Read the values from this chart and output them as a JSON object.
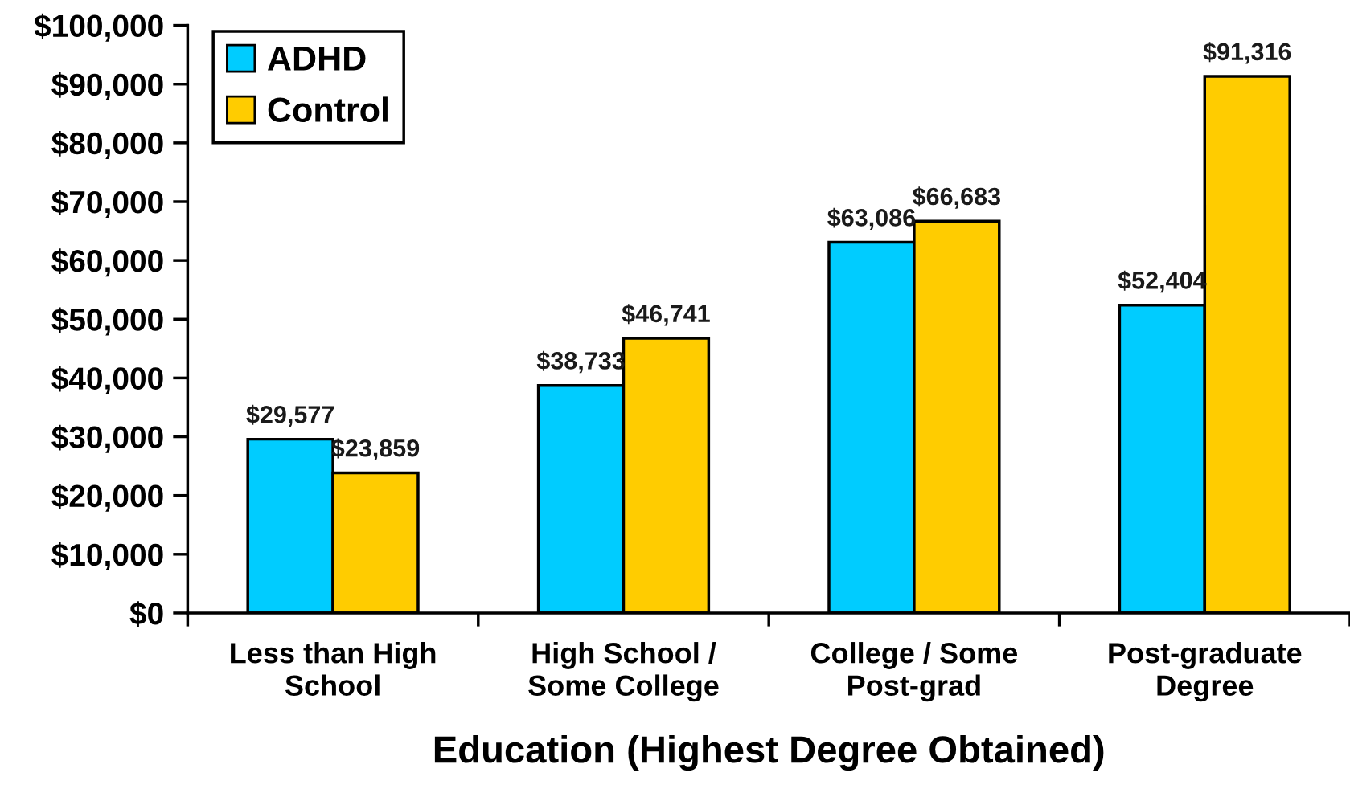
{
  "chart_data": {
    "type": "bar",
    "xlabel": "Education (Highest Degree Obtained)",
    "categories": [
      "Less than High\nSchool",
      "High School /\nSome College",
      "College / Some\nPost-grad",
      "Post-graduate\nDegree"
    ],
    "series": [
      {
        "name": "ADHD",
        "color": "#00ccff",
        "values": [
          29577,
          38733,
          63086,
          52404
        ],
        "value_labels": [
          "$29,577",
          "$38,733",
          "$63,086",
          "$52,404"
        ]
      },
      {
        "name": "Control",
        "color": "#ffcc00",
        "values": [
          23859,
          46741,
          66683,
          91316
        ],
        "value_labels": [
          "$23,859",
          "$46,741",
          "$66,683",
          "$91,316"
        ]
      }
    ],
    "ylim": [
      0,
      100000
    ],
    "yticks": [
      {
        "value": 0,
        "label": "$0"
      },
      {
        "value": 10000,
        "label": "$10,000"
      },
      {
        "value": 20000,
        "label": "$20,000"
      },
      {
        "value": 30000,
        "label": "$30,000"
      },
      {
        "value": 40000,
        "label": "$40,000"
      },
      {
        "value": 50000,
        "label": "$50,000"
      },
      {
        "value": 60000,
        "label": "$60,000"
      },
      {
        "value": 70000,
        "label": "$70,000"
      },
      {
        "value": 80000,
        "label": "$80,000"
      },
      {
        "value": 90000,
        "label": "$90,000"
      },
      {
        "value": 100000,
        "label": "$100,000"
      }
    ],
    "legend": "top left",
    "grid": false
  }
}
